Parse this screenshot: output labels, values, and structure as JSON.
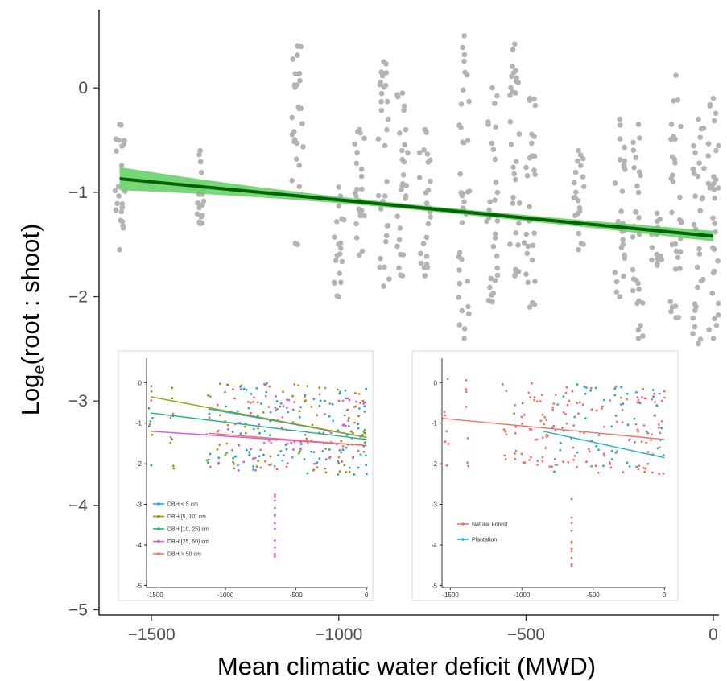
{
  "chart_data": [
    {
      "type": "scatter",
      "xlabel": "Mean climatic water deficit (MWD)",
      "ylabel": "Loge(root : shoot)",
      "ylabel_main": "Log",
      "ylabel_sub": "e",
      "ylabel_rest": "(root : shoot)",
      "xlim": [
        -1640,
        15
      ],
      "ylim": [
        -5.05,
        0.75
      ],
      "xticks": [
        -1500,
        -1000,
        -500,
        0
      ],
      "xtick_labels": [
        "−1500",
        "−1000",
        "−500",
        "0"
      ],
      "yticks": [
        0,
        -1,
        -2,
        -3,
        -4,
        -5
      ],
      "ytick_labels": [
        "0",
        "−1",
        "−2",
        "−3",
        "−4",
        "−5"
      ],
      "grid": false,
      "point_color": "#b3b3b3",
      "fit": {
        "x": [
          -1585,
          0
        ],
        "y": [
          -0.87,
          -1.42
        ],
        "color": "#006400",
        "ci_color": "#5fcf5f",
        "ci_halfwidth_ends": [
          0.11,
          0.05
        ],
        "ci_halfwidth_mid": 0.025
      },
      "points_summary": [
        {
          "x": -1585,
          "ymin": -1.55,
          "ymax": -0.35
        },
        {
          "x": -1370,
          "ymin": -1.3,
          "ymax": -0.6
        },
        {
          "x": -1110,
          "ymin": -1.5,
          "ymax": 0.4
        },
        {
          "x": -1000,
          "ymin": -2.0,
          "ymax": -0.95
        },
        {
          "x": -945,
          "ymin": -1.6,
          "ymax": -0.4
        },
        {
          "x": -880,
          "ymin": -1.9,
          "ymax": 0.25
        },
        {
          "x": -830,
          "ymin": -1.8,
          "ymax": -0.05
        },
        {
          "x": -770,
          "ymin": -1.8,
          "ymax": -0.4
        },
        {
          "x": -665,
          "ymin": -2.4,
          "ymax": 0.5
        },
        {
          "x": -590,
          "ymin": -2.05,
          "ymax": 0.0
        },
        {
          "x": -530,
          "ymin": -1.8,
          "ymax": 0.42
        },
        {
          "x": -490,
          "ymin": -2.1,
          "ymax": -0.1
        },
        {
          "x": -360,
          "ymin": -1.55,
          "ymax": -0.6
        },
        {
          "x": -250,
          "ymin": -2.0,
          "ymax": -0.3
        },
        {
          "x": -200,
          "ymin": -2.4,
          "ymax": -0.35
        },
        {
          "x": -150,
          "ymin": -1.7,
          "ymax": -1.2
        },
        {
          "x": -100,
          "ymin": -2.2,
          "ymax": 0.12
        },
        {
          "x": -40,
          "ymin": -2.45,
          "ymax": -0.3
        },
        {
          "x": 0,
          "ymin": -2.4,
          "ymax": -0.1
        }
      ]
    },
    {
      "type": "scatter",
      "xlim": [
        -1560,
        10
      ],
      "ylim": [
        -5.05,
        0.6
      ],
      "xticks": [
        -1500,
        -1000,
        -500,
        0
      ],
      "xtick_labels": [
        "-1500",
        "-1000",
        "-500",
        "0"
      ],
      "yticks": [
        0,
        -1,
        -2,
        -3,
        -4,
        -5
      ],
      "ytick_labels": [
        "0",
        "-1",
        "-2",
        "-3",
        "-4",
        "-5"
      ],
      "legend_position": "bottom-left",
      "series": [
        {
          "name": "DBH < 5 cm",
          "color": "#1ea8e6",
          "fit": {
            "x": [
              -1120,
              0
            ],
            "y": [
              -0.65,
              -1.35
            ]
          }
        },
        {
          "name": "DBH [5, 10) cm",
          "color": "#9a9a00",
          "fit": {
            "x": [
              -1530,
              0
            ],
            "y": [
              -0.35,
              -1.35
            ]
          }
        },
        {
          "name": "DBH [10, 25) cm",
          "color": "#1fb384",
          "fit": {
            "x": [
              -1530,
              0
            ],
            "y": [
              -0.75,
              -1.4
            ]
          }
        },
        {
          "name": "DBH [25, 50) cm",
          "color": "#d659e0",
          "fit": {
            "x": [
              -1530,
              0
            ],
            "y": [
              -1.2,
              -1.55
            ]
          }
        },
        {
          "name": "DBH > 50 cm",
          "color": "#f26f62",
          "fit": {
            "x": [
              -1120,
              0
            ],
            "y": [
              -1.25,
              -1.55
            ]
          }
        }
      ]
    },
    {
      "type": "scatter",
      "xlim": [
        -1560,
        10
      ],
      "ylim": [
        -5.05,
        0.6
      ],
      "xticks": [
        -1500,
        -1000,
        -500,
        0
      ],
      "xtick_labels": [
        "-1500",
        "-1000",
        "-500",
        "0"
      ],
      "yticks": [
        0,
        -1,
        -2,
        -3,
        -4,
        -5
      ],
      "ytick_labels": [
        "0",
        "-1",
        "-2",
        "-3",
        "-4",
        "-5"
      ],
      "legend_position": "bottom-left",
      "series": [
        {
          "name": "Natural Forest",
          "color": "#f26f62",
          "fit": {
            "x": [
              -1560,
              0
            ],
            "y": [
              -0.88,
              -1.4
            ]
          }
        },
        {
          "name": "Plantation",
          "color": "#19b3c2",
          "fit": {
            "x": [
              -850,
              0
            ],
            "y": [
              -1.2,
              -1.85
            ]
          }
        }
      ]
    }
  ]
}
